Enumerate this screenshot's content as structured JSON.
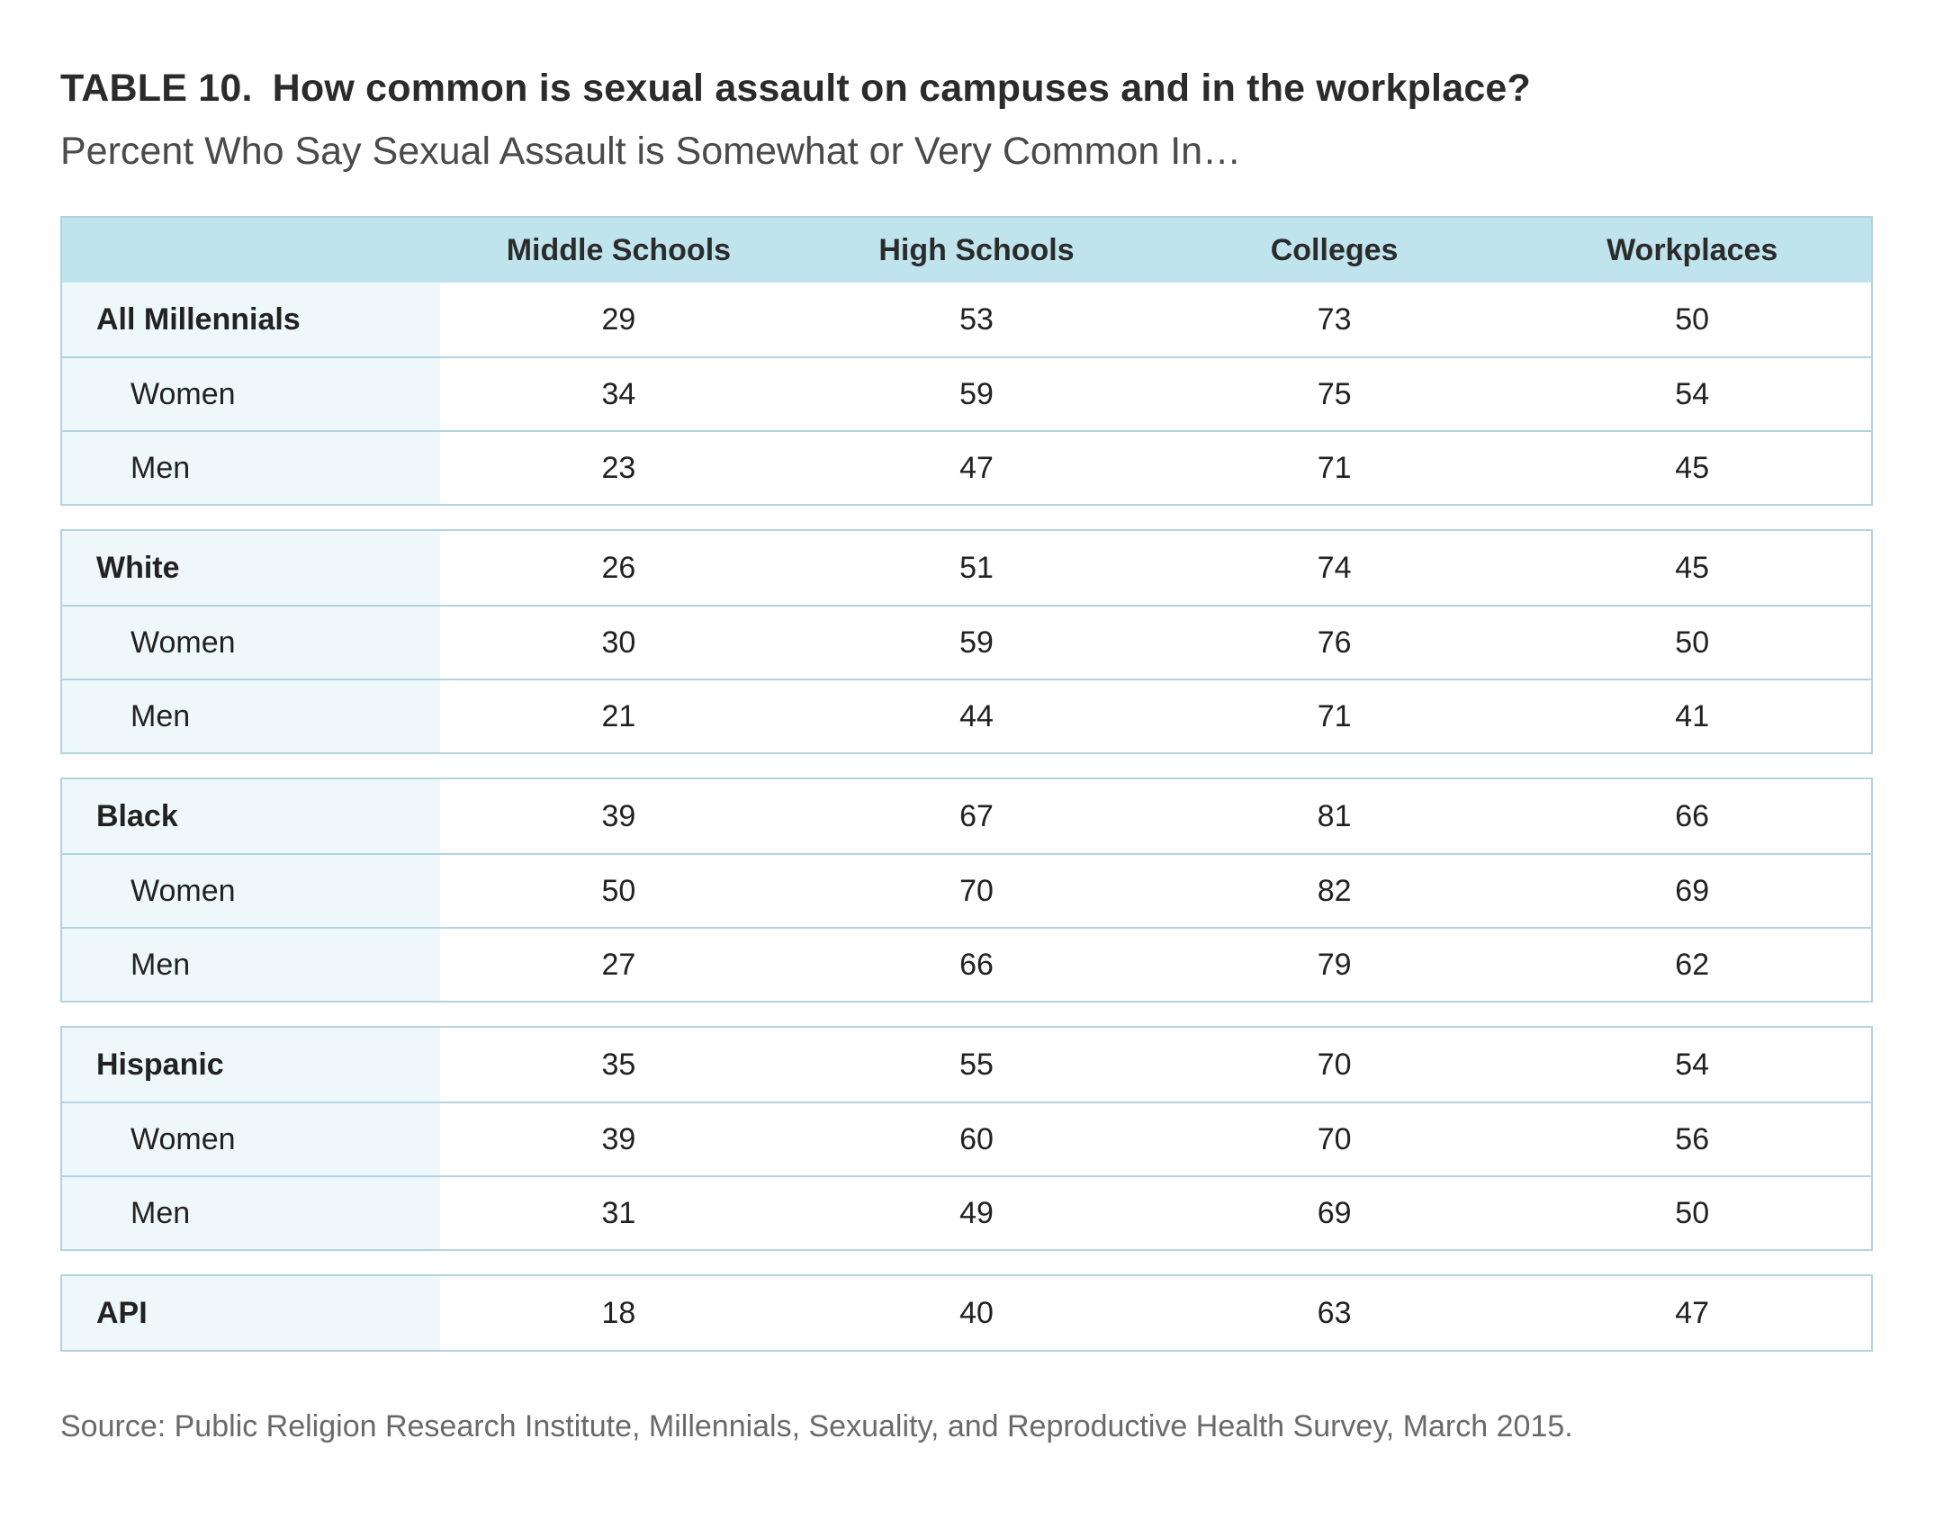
{
  "title": {
    "table_number": "TABLE 10.",
    "text": "How common is sexual assault on campuses and in the workplace?"
  },
  "subtitle": "Percent Who Say Sexual Assault is Somewhat or Very Common In…",
  "source": "Source: Public Religion Research Institute, Millennials, Sexuality, and Reproductive Health Survey, March 2015.",
  "colors": {
    "header_bg": "#c0e4ee",
    "label_bg": "#eef7fa",
    "border": "#b3d4df"
  },
  "chart_data": {
    "type": "table",
    "title": "How common is sexual assault on campuses and in the workplace?",
    "subtitle": "Percent Who Say Sexual Assault is Somewhat or Very Common In…",
    "columns": [
      "Middle Schools",
      "High Schools",
      "Colleges",
      "Workplaces"
    ],
    "groups": [
      {
        "rows": [
          {
            "label": "All Millennials",
            "level": "main",
            "values": [
              "29",
              "53",
              "73",
              "50"
            ]
          },
          {
            "label": "Women",
            "level": "sub",
            "values": [
              "34",
              "59",
              "75",
              "54"
            ]
          },
          {
            "label": "Men",
            "level": "sub",
            "values": [
              "23",
              "47",
              "71",
              "45"
            ]
          }
        ]
      },
      {
        "rows": [
          {
            "label": "White",
            "level": "main",
            "values": [
              "26",
              "51",
              "74",
              "45"
            ]
          },
          {
            "label": "Women",
            "level": "sub",
            "values": [
              "30",
              "59",
              "76",
              "50"
            ]
          },
          {
            "label": "Men",
            "level": "sub",
            "values": [
              "21",
              "44",
              "71",
              "41"
            ]
          }
        ]
      },
      {
        "rows": [
          {
            "label": "Black",
            "level": "main",
            "values": [
              "39",
              "67",
              "81",
              "66"
            ]
          },
          {
            "label": "Women",
            "level": "sub",
            "values": [
              "50",
              "70",
              "82",
              "69"
            ]
          },
          {
            "label": "Men",
            "level": "sub",
            "values": [
              "27",
              "66",
              "79",
              "62"
            ]
          }
        ]
      },
      {
        "rows": [
          {
            "label": "Hispanic",
            "level": "main",
            "values": [
              "35",
              "55",
              "70",
              "54"
            ]
          },
          {
            "label": "Women",
            "level": "sub",
            "values": [
              "39",
              "60",
              "70",
              "56"
            ]
          },
          {
            "label": "Men",
            "level": "sub",
            "values": [
              "31",
              "49",
              "69",
              "50"
            ]
          }
        ]
      },
      {
        "rows": [
          {
            "label": "API",
            "level": "main",
            "values": [
              "18",
              "40",
              "63",
              "47"
            ]
          }
        ]
      }
    ]
  }
}
